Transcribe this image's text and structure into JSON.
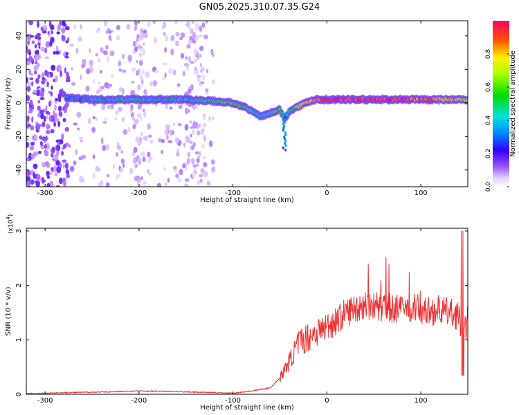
{
  "chart_data": [
    {
      "type": "heatmap",
      "title": "GN05.2025.310.07.35.G24",
      "xlabel": "Height of straight line (km)",
      "ylabel": "Frequency (Hz)",
      "xlim": [
        -320,
        150
      ],
      "ylim": [
        -50,
        49
      ],
      "xticks": [
        -300,
        -200,
        -100,
        0,
        100
      ],
      "yticks": [
        -40,
        -20,
        0,
        20,
        40
      ],
      "colorbar": {
        "label": "Normalized spectral amplitude",
        "ticks": [
          0.0,
          0.2,
          0.4,
          0.6,
          0.8
        ],
        "range": [
          0,
          1
        ]
      },
      "ridge": {
        "x": [
          -275,
          -250,
          -200,
          -150,
          -120,
          -100,
          -90,
          -80,
          -70,
          -60,
          -50,
          -45,
          -40,
          -30,
          -20,
          -10,
          0,
          50,
          100,
          150
        ],
        "y": [
          3,
          2,
          2,
          2,
          1,
          0,
          -2,
          -5,
          -8,
          -6,
          -4,
          -10,
          -5,
          -2,
          1,
          2,
          2,
          2,
          2,
          2
        ],
        "amplitude": [
          0.35,
          0.4,
          0.45,
          0.4,
          0.5,
          0.6,
          0.55,
          0.5,
          0.45,
          0.5,
          0.55,
          0.3,
          0.5,
          0.6,
          0.75,
          0.85,
          0.95,
          0.95,
          0.9,
          0.7
        ]
      }
    },
    {
      "type": "line",
      "title": "",
      "xlabel": "Height of straight line (km)",
      "ylabel": "SNR (10 * v/v)",
      "scale_label": "(x10",
      "scale_exp": "4",
      "scale_close": ")",
      "xlim": [
        -320,
        150
      ],
      "ylim": [
        0,
        3.05
      ],
      "xticks": [
        -300,
        -200,
        -100,
        0,
        100
      ],
      "yticks": [
        0,
        1,
        2,
        3
      ],
      "series": [
        {
          "name": "SNR",
          "color": "#ee3030",
          "x": [
            -320,
            -280,
            -240,
            -200,
            -160,
            -120,
            -100,
            -80,
            -60,
            -50,
            -40,
            -30,
            -20,
            -10,
            0,
            10,
            20,
            30,
            40,
            50,
            60,
            70,
            80,
            90,
            100,
            110,
            120,
            130,
            140,
            145,
            150
          ],
          "y": [
            0.01,
            0.03,
            0.04,
            0.06,
            0.05,
            0.03,
            0.02,
            0.06,
            0.12,
            0.3,
            0.6,
            0.95,
            1.05,
            1.15,
            1.25,
            1.35,
            1.5,
            1.58,
            1.65,
            1.63,
            1.6,
            1.58,
            1.55,
            1.6,
            1.55,
            1.52,
            1.55,
            1.5,
            1.45,
            1.0,
            1.4
          ]
        }
      ]
    }
  ]
}
